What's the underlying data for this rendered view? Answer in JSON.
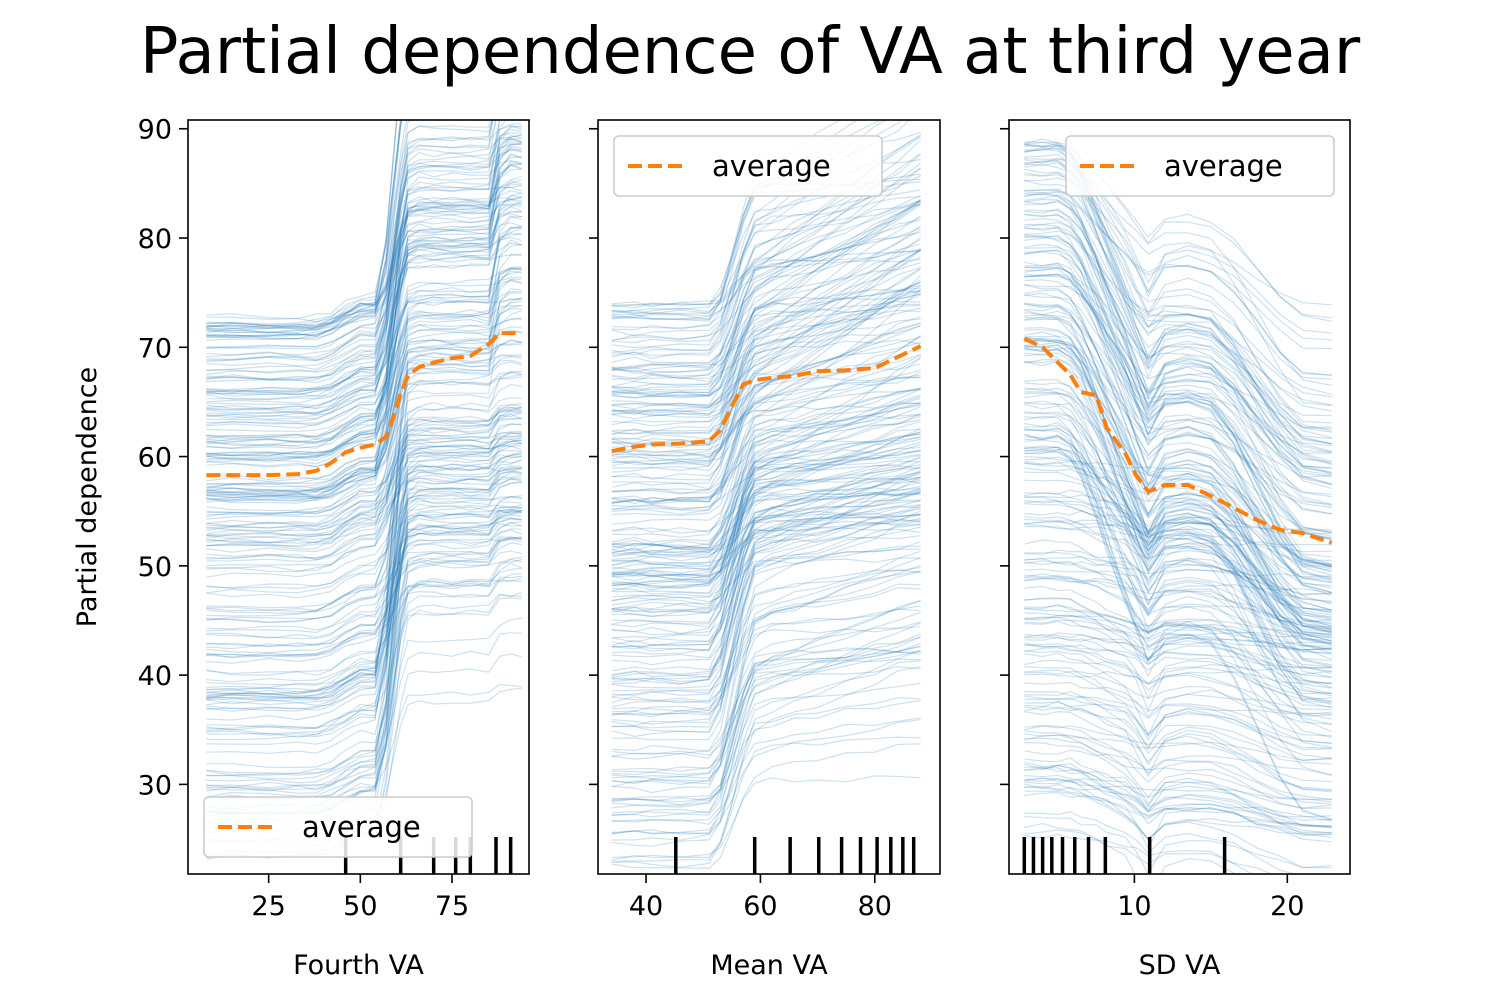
{
  "chart_data": [
    {
      "type": "line",
      "title": "Partial dependence of VA at third year",
      "xlabel": "Fourth VA",
      "ylabel": "Partial dependence",
      "xlim": [
        3,
        96
      ],
      "ylim": [
        21.8,
        90.8
      ],
      "xticks": [
        25,
        50,
        75
      ],
      "yticks": [
        30,
        40,
        50,
        60,
        70,
        80,
        90
      ],
      "legend": {
        "label": "average",
        "position": "lower-left"
      },
      "series": [
        {
          "name": "average",
          "x": [
            8,
            15,
            25,
            33,
            38,
            42,
            46,
            50,
            54,
            57,
            59,
            61,
            63,
            66,
            70,
            75,
            80,
            85,
            88,
            91,
            94
          ],
          "values": [
            58.3,
            58.3,
            58.3,
            58.4,
            58.7,
            59.4,
            60.4,
            60.8,
            61.1,
            61.8,
            63.6,
            65.8,
            67.4,
            68.2,
            68.6,
            69.0,
            69.2,
            70.3,
            71.3,
            71.3,
            71.3
          ]
        }
      ],
      "rug": [
        46,
        61,
        70,
        76,
        80,
        87,
        91
      ],
      "grid": false
    },
    {
      "type": "line",
      "xlabel": "Mean VA",
      "ylabel": "",
      "xlim": [
        31.6,
        91.4
      ],
      "ylim": [
        21.8,
        90.8
      ],
      "xticks": [
        40,
        60,
        80
      ],
      "yticks": [
        30,
        40,
        50,
        60,
        70,
        80,
        90
      ],
      "legend": {
        "label": "average",
        "position": "upper-left"
      },
      "series": [
        {
          "name": "average",
          "x": [
            34,
            38,
            41,
            46,
            51,
            53,
            55,
            57,
            59,
            62,
            66,
            70,
            75,
            80,
            84,
            88
          ],
          "values": [
            60.5,
            60.9,
            61.1,
            61.2,
            61.4,
            62.4,
            64.6,
            66.6,
            67.0,
            67.2,
            67.4,
            67.8,
            67.9,
            68.1,
            69.1,
            70.1
          ]
        }
      ],
      "rug": [
        45.2,
        59,
        65.2,
        70.2,
        74.2,
        77.5,
        80.4,
        82.8,
        84.9,
        86.8
      ],
      "grid": false
    },
    {
      "type": "line",
      "xlabel": "SD VA",
      "ylabel": "",
      "xlim": [
        1.8,
        24.1
      ],
      "ylim": [
        21.8,
        90.8
      ],
      "xticks": [
        10,
        20
      ],
      "yticks": [
        30,
        40,
        50,
        60,
        70,
        80,
        90
      ],
      "legend": {
        "label": "average",
        "position": "upper-right"
      },
      "series": [
        {
          "name": "average",
          "x": [
            2.8,
            4.0,
            5.0,
            5.8,
            6.5,
            7.5,
            8.2,
            9.4,
            10.1,
            10.9,
            12.0,
            13.5,
            15.0,
            16.5,
            18.0,
            19.5,
            21.0,
            22.9
          ],
          "values": [
            70.8,
            70.0,
            68.6,
            67.5,
            65.9,
            65.6,
            62.6,
            60.3,
            58.3,
            56.8,
            57.4,
            57.4,
            56.4,
            55.3,
            54.2,
            53.3,
            53.0,
            52.1
          ]
        }
      ],
      "rug": [
        2.8,
        3.4,
        4.0,
        4.6,
        5.3,
        6.1,
        7.0,
        8.1,
        11.0,
        15.9
      ],
      "grid": false
    }
  ]
}
